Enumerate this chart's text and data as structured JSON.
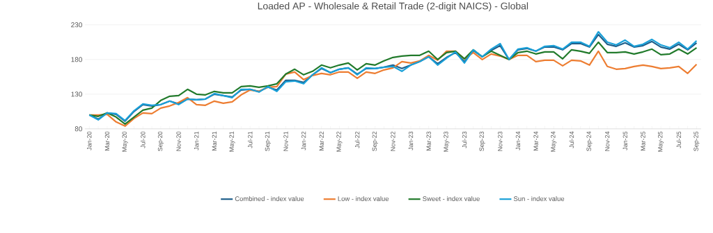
{
  "chart_data": {
    "type": "line",
    "title": "Loaded AP - Wholesale & Retail Trade (2-digit NAICS) - Global",
    "categories": [
      "Jan-20",
      null,
      "Mar-20",
      null,
      "May-20",
      null,
      "Jul-20",
      null,
      "Sep-20",
      null,
      "Nov-20",
      null,
      "Jan-21",
      null,
      "Mar-21",
      null,
      "May-21",
      null,
      "Jul-21",
      null,
      "Sep-21",
      null,
      "Nov-21",
      null,
      "Jan-22",
      null,
      "Mar-22",
      null,
      "May-22",
      null,
      "Jul-22",
      null,
      "Sep-22",
      null,
      "Nov-22",
      null,
      "Jan-23",
      null,
      "Mar-23",
      null,
      "May-23",
      null,
      "Jul-23",
      null,
      "Sep-23",
      null,
      "Nov-23",
      null,
      "Jan-24",
      null,
      "Mar-24",
      null,
      "May-24",
      null,
      "Jul-24",
      null,
      "Sep-24",
      null,
      "Nov-24",
      null,
      "Jan-25",
      null,
      "Mar-25",
      null,
      "May-25",
      null,
      "Jul-25",
      null,
      "Sep-25"
    ],
    "series": [
      {
        "name": "Combined - index value",
        "color": "#1f5f8b",
        "values": [
          100,
          94,
          103,
          101,
          91,
          105,
          115,
          113,
          115,
          120,
          116,
          123,
          122,
          123,
          130,
          128,
          126,
          136,
          137,
          134,
          140,
          136,
          150,
          150,
          147,
          158,
          167,
          161,
          166,
          168,
          159,
          167,
          167,
          169,
          172,
          167,
          172,
          177,
          184,
          174,
          183,
          190,
          177,
          193,
          184,
          193,
          200,
          180,
          194,
          196,
          192,
          198,
          198,
          194,
          203,
          203,
          198,
          216,
          202,
          199,
          204,
          198,
          200,
          206,
          198,
          195,
          202,
          194,
          204
        ]
      },
      {
        "name": "Low - index value",
        "color": "#ed7d31",
        "values": [
          100,
          100,
          101,
          90,
          84,
          95,
          103,
          102,
          110,
          113,
          118,
          125,
          115,
          114,
          120,
          117,
          119,
          129,
          136,
          134,
          140,
          141,
          159,
          162,
          151,
          157,
          160,
          158,
          162,
          162,
          153,
          162,
          160,
          165,
          168,
          177,
          175,
          178,
          186,
          179,
          192,
          192,
          181,
          190,
          180,
          188,
          185,
          180,
          186,
          186,
          177,
          179,
          179,
          171,
          179,
          178,
          172,
          192,
          170,
          166,
          167,
          170,
          172,
          170,
          167,
          168,
          170,
          160,
          173
        ]
      },
      {
        "name": "Sweet - index value",
        "color": "#217a2b",
        "values": [
          100,
          98,
          103,
          97,
          87,
          97,
          107,
          110,
          121,
          127,
          128,
          137,
          130,
          129,
          134,
          132,
          132,
          141,
          142,
          140,
          142,
          145,
          159,
          166,
          158,
          163,
          172,
          168,
          172,
          175,
          165,
          174,
          172,
          178,
          183,
          185,
          186,
          186,
          192,
          180,
          190,
          192,
          181,
          194,
          184,
          192,
          186,
          180,
          190,
          192,
          188,
          191,
          191,
          181,
          194,
          192,
          189,
          205,
          190,
          190,
          191,
          188,
          191,
          195,
          187,
          188,
          195,
          188,
          197
        ]
      },
      {
        "name": "Sun - index value",
        "color": "#1aa0d8",
        "values": [
          100,
          93,
          103,
          102,
          92,
          106,
          116,
          114,
          115,
          120,
          115,
          123,
          122,
          123,
          131,
          128,
          125,
          137,
          137,
          133,
          141,
          134,
          148,
          149,
          145,
          158,
          168,
          161,
          166,
          168,
          158,
          168,
          167,
          169,
          170,
          163,
          172,
          177,
          184,
          172,
          182,
          191,
          175,
          194,
          184,
          195,
          203,
          180,
          195,
          197,
          192,
          199,
          200,
          195,
          205,
          205,
          199,
          220,
          205,
          201,
          208,
          199,
          202,
          209,
          201,
          197,
          205,
          195,
          207
        ]
      }
    ],
    "ylim": [
      80,
      230
    ],
    "yticks": [
      80,
      130,
      180,
      230
    ],
    "grid": "y",
    "legend": "bottom",
    "marker": "none",
    "line_style": "solid"
  }
}
